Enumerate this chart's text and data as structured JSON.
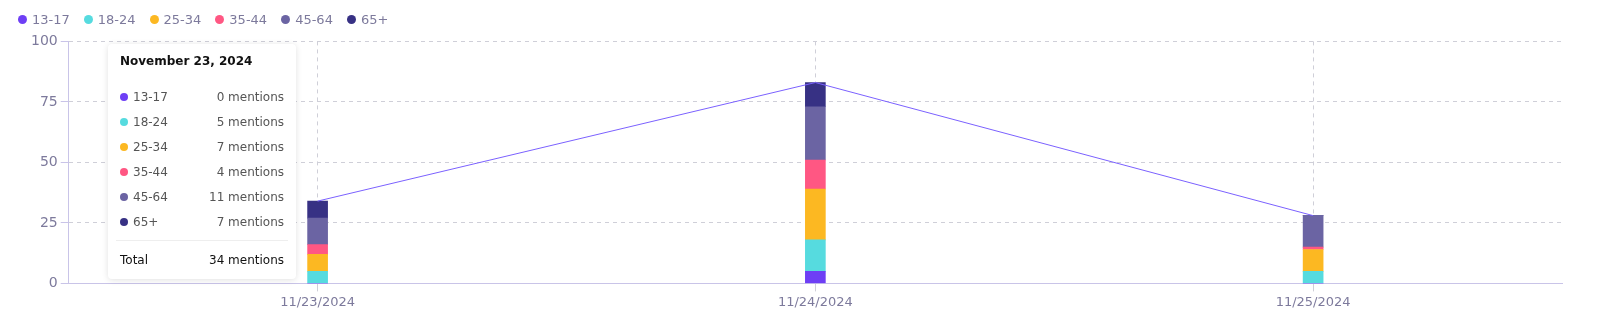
{
  "chart_data": {
    "type": "bar",
    "stacked": true,
    "categories": [
      "11/23/2024",
      "11/24/2024",
      "11/25/2024"
    ],
    "series": [
      {
        "name": "13-17",
        "color": "#6e3ff5",
        "values": [
          0,
          5,
          0
        ]
      },
      {
        "name": "18-24",
        "color": "#56dbdf",
        "values": [
          5,
          13,
          5
        ]
      },
      {
        "name": "25-34",
        "color": "#fcb822",
        "values": [
          7,
          21,
          9
        ]
      },
      {
        "name": "35-44",
        "color": "#ff5783",
        "values": [
          4,
          12,
          1
        ]
      },
      {
        "name": "45-64",
        "color": "#6b64a3",
        "values": [
          11,
          22,
          13
        ]
      },
      {
        "name": "65+",
        "color": "#373184",
        "values": [
          7,
          10,
          0
        ]
      },
      {
        "type": "line",
        "color": "#7b61ff",
        "values": [
          34,
          83,
          28
        ]
      }
    ],
    "ylim": [
      0,
      100
    ],
    "yticks": [
      0,
      25,
      50,
      75,
      100
    ],
    "grid": true,
    "legend": "top left",
    "marker": "none",
    "annotations": [
      "November 23, 2024",
      "0 mentions",
      "5 mentions",
      "7 mentions",
      "4 mentions",
      "11 mentions",
      "7 mentions",
      "Total",
      "34 mentions"
    ]
  }
}
